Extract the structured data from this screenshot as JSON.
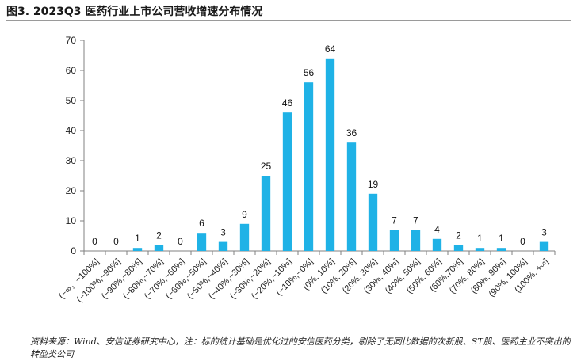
{
  "figure": {
    "title": "图3. 2023Q3 医药行业上市公司营收增速分布情况",
    "source": "资料来源：Wind、安信证券研究中心，注：标的统计基础是优化过的安信医药分类，剔除了无同比数据的次新股、ST股、医药主业不突出的转型类公司"
  },
  "colors": {
    "bar": "#1fb2e6",
    "axis": "#808080"
  },
  "chart_data": {
    "type": "bar",
    "title": "2023Q3 医药行业上市公司营收增速分布情况",
    "xlabel": "",
    "ylabel": "",
    "ylim": [
      0,
      70
    ],
    "yticks": [
      0,
      10,
      20,
      30,
      40,
      50,
      60,
      70
    ],
    "grid": false,
    "categories": [
      "(−∞，−100%]",
      "(−100%,−90%]",
      "(−90%,−80%]",
      "(−80%,−70%]",
      "(−70%,−60%]",
      "(−60%,−50%]",
      "(−50%,−40%]",
      "(−40%,−30%]",
      "(−30%,−20%]",
      "(−20%,−10%]",
      "(−10%,−0%]",
      "(0%, 10%]",
      "(10%, 20%]",
      "(20%, 30%]",
      "(30%, 40%]",
      "(40%, 50%]",
      "(50%, 60%]",
      "(60%,70%]",
      "(70%, 80%]",
      "(80%, 90%]",
      "(90%, 100%]",
      "(100%, +∞]"
    ],
    "values": [
      0,
      0,
      1,
      2,
      0,
      6,
      3,
      9,
      25,
      46,
      56,
      64,
      36,
      19,
      7,
      7,
      4,
      2,
      1,
      1,
      0,
      3
    ]
  }
}
